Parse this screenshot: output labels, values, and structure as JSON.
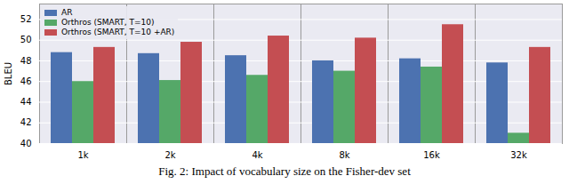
{
  "chart_data": {
    "type": "bar",
    "title": "Fig. 2: Impact of vocabulary size on the Fisher-dev set",
    "y_label": "BLEU",
    "categories": [
      "1k",
      "2k",
      "4k",
      "8k",
      "16k",
      "32k"
    ],
    "series": [
      {
        "name": "AR",
        "color": "#4c72b0",
        "values": [
          48.8,
          48.7,
          48.5,
          48.0,
          48.2,
          47.8
        ]
      },
      {
        "name": "Orthros (SMART, T=10)",
        "color": "#55a868",
        "values": [
          46.0,
          46.1,
          46.6,
          47.0,
          47.4,
          41.0
        ]
      },
      {
        "name": "Orthros (SMART, T=10 +AR)",
        "color": "#c44e52",
        "values": [
          49.3,
          49.8,
          50.4,
          50.2,
          51.5,
          49.3
        ]
      }
    ],
    "ylim": [
      40,
      53.5
    ],
    "yticks": [
      40,
      42,
      44,
      46,
      48,
      50,
      52
    ],
    "grid": true,
    "legend": "upper left"
  }
}
